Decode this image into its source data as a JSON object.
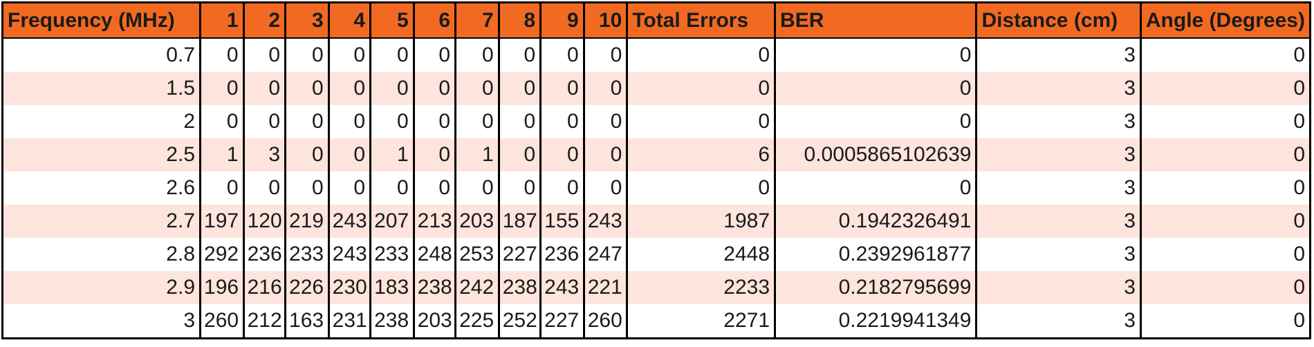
{
  "colors": {
    "header_bg": "#f26a22",
    "row_alt_bg": "#fde4dc",
    "row_bg": "#ffffff",
    "border": "#000000"
  },
  "table": {
    "columns": [
      {
        "label": "Frequency (MHz)",
        "align": "left"
      },
      {
        "label": "1",
        "align": "right"
      },
      {
        "label": "2",
        "align": "right"
      },
      {
        "label": "3",
        "align": "right"
      },
      {
        "label": "4",
        "align": "right"
      },
      {
        "label": "5",
        "align": "right"
      },
      {
        "label": "6",
        "align": "right"
      },
      {
        "label": "7",
        "align": "right"
      },
      {
        "label": "8",
        "align": "right"
      },
      {
        "label": "9",
        "align": "right"
      },
      {
        "label": "10",
        "align": "right"
      },
      {
        "label": "Total Errors",
        "align": "left"
      },
      {
        "label": "BER",
        "align": "left"
      },
      {
        "label": "Distance (cm)",
        "align": "left"
      },
      {
        "label": "Angle (Degrees)",
        "align": "left"
      }
    ],
    "rows": [
      [
        "0.7",
        "0",
        "0",
        "0",
        "0",
        "0",
        "0",
        "0",
        "0",
        "0",
        "0",
        "0",
        "0",
        "3",
        "0"
      ],
      [
        "1.5",
        "0",
        "0",
        "0",
        "0",
        "0",
        "0",
        "0",
        "0",
        "0",
        "0",
        "0",
        "0",
        "3",
        "0"
      ],
      [
        "2",
        "0",
        "0",
        "0",
        "0",
        "0",
        "0",
        "0",
        "0",
        "0",
        "0",
        "0",
        "0",
        "3",
        "0"
      ],
      [
        "2.5",
        "1",
        "3",
        "0",
        "0",
        "1",
        "0",
        "1",
        "0",
        "0",
        "0",
        "6",
        "0.0005865102639",
        "3",
        "0"
      ],
      [
        "2.6",
        "0",
        "0",
        "0",
        "0",
        "0",
        "0",
        "0",
        "0",
        "0",
        "0",
        "0",
        "0",
        "3",
        "0"
      ],
      [
        "2.7",
        "197",
        "120",
        "219",
        "243",
        "207",
        "213",
        "203",
        "187",
        "155",
        "243",
        "1987",
        "0.1942326491",
        "3",
        "0"
      ],
      [
        "2.8",
        "292",
        "236",
        "233",
        "243",
        "233",
        "248",
        "253",
        "227",
        "236",
        "247",
        "2448",
        "0.2392961877",
        "3",
        "0"
      ],
      [
        "2.9",
        "196",
        "216",
        "226",
        "230",
        "183",
        "238",
        "242",
        "238",
        "243",
        "221",
        "2233",
        "0.2182795699",
        "3",
        "0"
      ],
      [
        "3",
        "260",
        "212",
        "163",
        "231",
        "238",
        "203",
        "225",
        "252",
        "227",
        "260",
        "2271",
        "0.2219941349",
        "3",
        "0"
      ]
    ]
  }
}
